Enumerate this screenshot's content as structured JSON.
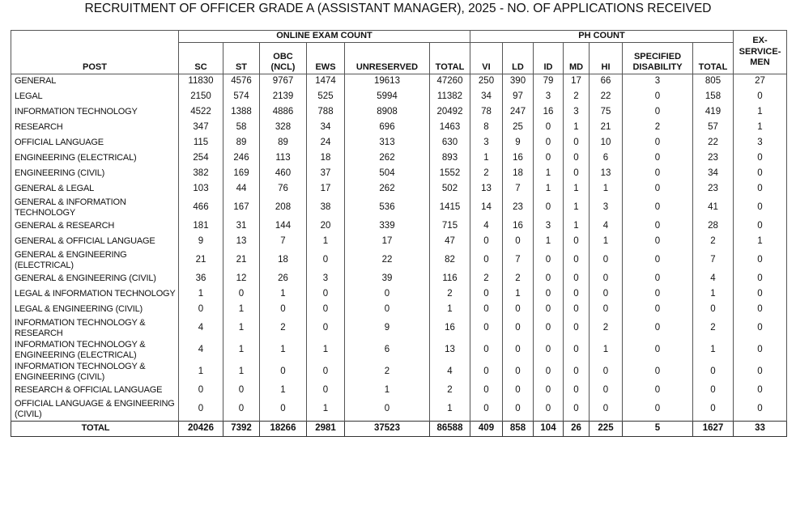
{
  "title": "RECRUITMENT OF OFFICER GRADE A (ASSISTANT MANAGER), 2025 - NO. OF APPLICATIONS RECEIVED",
  "table": {
    "group_headers": [
      "ONLINE EXAM COUNT",
      "PH COUNT"
    ],
    "columns": [
      "POST",
      "SC",
      "ST",
      "OBC (NCL)",
      "EWS",
      "UNRESERVED",
      "TOTAL",
      "VI",
      "LD",
      "ID",
      "MD",
      "HI",
      "SPECIFIED DISABILITY",
      "TOTAL",
      "EX-SERVICE-MEN"
    ],
    "rows": [
      {
        "post": "GENERAL",
        "values": [
          11830,
          4576,
          9767,
          1474,
          19613,
          47260,
          250,
          390,
          79,
          17,
          66,
          3,
          805,
          27
        ]
      },
      {
        "post": "LEGAL",
        "values": [
          2150,
          574,
          2139,
          525,
          5994,
          11382,
          34,
          97,
          3,
          2,
          22,
          0,
          158,
          0
        ]
      },
      {
        "post": "INFORMATION TECHNOLOGY",
        "values": [
          4522,
          1388,
          4886,
          788,
          8908,
          20492,
          78,
          247,
          16,
          3,
          75,
          0,
          419,
          1
        ]
      },
      {
        "post": "RESEARCH",
        "values": [
          347,
          58,
          328,
          34,
          696,
          1463,
          8,
          25,
          0,
          1,
          21,
          2,
          57,
          1
        ]
      },
      {
        "post": "OFFICIAL LANGUAGE",
        "values": [
          115,
          89,
          89,
          24,
          313,
          630,
          3,
          9,
          0,
          0,
          10,
          0,
          22,
          3
        ]
      },
      {
        "post": "ENGINEERING (ELECTRICAL)",
        "values": [
          254,
          246,
          113,
          18,
          262,
          893,
          1,
          16,
          0,
          0,
          6,
          0,
          23,
          0
        ]
      },
      {
        "post": "ENGINEERING (CIVIL)",
        "values": [
          382,
          169,
          460,
          37,
          504,
          1552,
          2,
          18,
          1,
          0,
          13,
          0,
          34,
          0
        ]
      },
      {
        "post": "GENERAL & LEGAL",
        "values": [
          103,
          44,
          76,
          17,
          262,
          502,
          13,
          7,
          1,
          1,
          1,
          0,
          23,
          0
        ]
      },
      {
        "post": "GENERAL & INFORMATION TECHNOLOGY",
        "values": [
          466,
          167,
          208,
          38,
          536,
          1415,
          14,
          23,
          0,
          1,
          3,
          0,
          41,
          0
        ]
      },
      {
        "post": "GENERAL & RESEARCH",
        "values": [
          181,
          31,
          144,
          20,
          339,
          715,
          4,
          16,
          3,
          1,
          4,
          0,
          28,
          0
        ]
      },
      {
        "post": "GENERAL & OFFICIAL LANGUAGE",
        "values": [
          9,
          13,
          7,
          1,
          17,
          47,
          0,
          0,
          1,
          0,
          1,
          0,
          2,
          1
        ]
      },
      {
        "post": "GENERAL & ENGINEERING (ELECTRICAL)",
        "values": [
          21,
          21,
          18,
          0,
          22,
          82,
          0,
          7,
          0,
          0,
          0,
          0,
          7,
          0
        ]
      },
      {
        "post": "GENERAL & ENGINEERING (CIVIL)",
        "values": [
          36,
          12,
          26,
          3,
          39,
          116,
          2,
          2,
          0,
          0,
          0,
          0,
          4,
          0
        ]
      },
      {
        "post": "LEGAL & INFORMATION TECHNOLOGY",
        "values": [
          1,
          0,
          1,
          0,
          0,
          2,
          0,
          1,
          0,
          0,
          0,
          0,
          1,
          0
        ]
      },
      {
        "post": "LEGAL & ENGINEERING (CIVIL)",
        "values": [
          0,
          1,
          0,
          0,
          0,
          1,
          0,
          0,
          0,
          0,
          0,
          0,
          0,
          0
        ]
      },
      {
        "post": "INFORMATION TECHNOLOGY & RESEARCH",
        "values": [
          4,
          1,
          2,
          0,
          9,
          16,
          0,
          0,
          0,
          0,
          2,
          0,
          2,
          0
        ]
      },
      {
        "post": "INFORMATION TECHNOLOGY & ENGINEERING (ELECTRICAL)",
        "values": [
          4,
          1,
          1,
          1,
          6,
          13,
          0,
          0,
          0,
          0,
          1,
          0,
          1,
          0
        ]
      },
      {
        "post": "INFORMATION TECHNOLOGY & ENGINEERING (CIVIL)",
        "values": [
          1,
          1,
          0,
          0,
          2,
          4,
          0,
          0,
          0,
          0,
          0,
          0,
          0,
          0
        ]
      },
      {
        "post": "RESEARCH & OFFICIAL LANGUAGE",
        "values": [
          0,
          0,
          1,
          0,
          1,
          2,
          0,
          0,
          0,
          0,
          0,
          0,
          0,
          0
        ]
      },
      {
        "post": "OFFICIAL LANGUAGE & ENGINEERING (CIVIL)",
        "values": [
          0,
          0,
          0,
          1,
          0,
          1,
          0,
          0,
          0,
          0,
          0,
          0,
          0,
          0
        ]
      }
    ],
    "total": {
      "post": "TOTAL",
      "values": [
        20426,
        7392,
        18266,
        2981,
        37523,
        86588,
        409,
        858,
        104,
        26,
        225,
        5,
        1627,
        33
      ]
    }
  }
}
